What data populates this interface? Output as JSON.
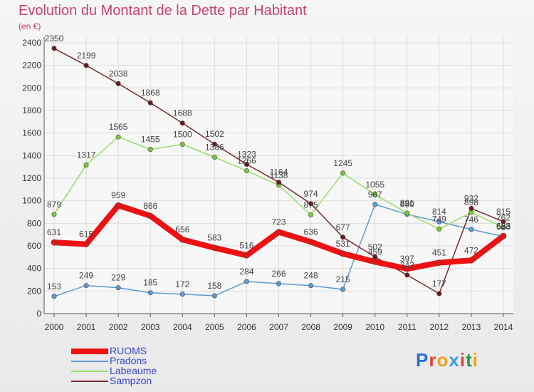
{
  "title": "Evolution du Montant de la Dette par Habitant",
  "subtitle": "(en €)",
  "logo": {
    "text": "Proxiti",
    "letter_colors": [
      "#2a6fd0",
      "#e8403a",
      "#f0a020",
      "#3aa0e0",
      "#e8403a",
      "#2a9a3a",
      "#f0a020"
    ]
  },
  "chart_data": {
    "type": "line",
    "title": "Evolution du Montant de la Dette par Habitant",
    "ylabel": "(en €)",
    "xlabel": "",
    "categories": [
      "2000",
      "2001",
      "2002",
      "2003",
      "2004",
      "2005",
      "2006",
      "2007",
      "2008",
      "2009",
      "2010",
      "2011",
      "2012",
      "2013",
      "2014"
    ],
    "ylim": [
      0,
      2400
    ],
    "yticks": [
      0,
      200,
      400,
      600,
      800,
      1000,
      1200,
      1400,
      1600,
      1800,
      2000,
      2200,
      2400
    ],
    "grid": true,
    "legend_position": "bottom-left",
    "series": [
      {
        "name": "RUOMS",
        "color": "#ee1111",
        "marker": "#ee1111",
        "width": 8,
        "values": [
          631,
          615,
          959,
          866,
          656,
          583,
          516,
          723,
          636,
          531,
          459,
          397,
          451,
          472,
          688
        ]
      },
      {
        "name": "Pradons",
        "color": "#5b9bd5",
        "marker": "#5b9bd5",
        "width": 1.5,
        "values": [
          153,
          249,
          229,
          185,
          172,
          158,
          284,
          266,
          248,
          215,
          967,
          880,
          814,
          746,
          683
        ]
      },
      {
        "name": "Labeaume",
        "color": "#99dd66",
        "marker": "#77cc33",
        "width": 1.5,
        "values": [
          879,
          1317,
          1565,
          1455,
          1500,
          1386,
          1266,
          1138,
          875,
          1245,
          1055,
          891,
          749,
          898,
          762
        ]
      },
      {
        "name": "Sampzon",
        "color": "#7a2a2a",
        "marker": "#6a1a1a",
        "width": 1.5,
        "values": [
          2350,
          2199,
          2038,
          1868,
          1688,
          1502,
          1323,
          1164,
          974,
          677,
          502,
          342,
          177,
          932,
          815
        ]
      }
    ]
  }
}
